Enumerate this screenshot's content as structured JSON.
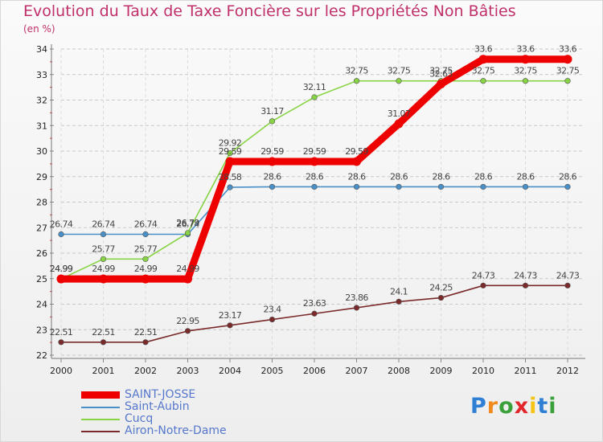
{
  "title": "Evolution du Taux de Taxe Foncière sur les Propriétés Non Bâties",
  "unit_label": "(en %)",
  "logo": {
    "text": "Proxiti",
    "colors": [
      "#2f7fd4",
      "#f08a1c",
      "#3aa13a",
      "#e2262b",
      "#f5c414",
      "#2f7fd4",
      "#3aa13a"
    ]
  },
  "chart_data": {
    "type": "line",
    "title": "Evolution du Taux de Taxe Foncière sur les Propriétés Non Bâties",
    "ylabel": "(en %)",
    "xlabel": "",
    "ylim": [
      22,
      34
    ],
    "yticks": [
      22,
      23,
      24,
      25,
      26,
      27,
      28,
      29,
      30,
      31,
      32,
      33,
      34
    ],
    "categories": [
      "2000",
      "2001",
      "2002",
      "2003",
      "2004",
      "2005",
      "2006",
      "2007",
      "2008",
      "2009",
      "2010",
      "2011",
      "2012"
    ],
    "grid": "horizontal dashed",
    "legend_position": "bottom-left",
    "series": [
      {
        "name": "SAINT-JOSSE",
        "color": "#ee0000",
        "values": [
          24.99,
          24.99,
          24.99,
          24.99,
          29.59,
          29.59,
          29.59,
          29.59,
          31.07,
          32.63,
          33.6,
          33.6,
          33.6
        ],
        "labels": [
          "24.99",
          "24.99",
          "24.99",
          "24.99",
          "29.59",
          "29.59",
          "29.59",
          "29.59",
          "31.07",
          "32.63",
          "33.6",
          "33.6",
          "33.6"
        ]
      },
      {
        "name": "Saint-Aubin",
        "color": "#4a90c8",
        "values": [
          26.74,
          26.74,
          26.74,
          26.74,
          28.58,
          28.6,
          28.6,
          28.6,
          28.6,
          28.6,
          28.6,
          28.6,
          28.6
        ],
        "labels": [
          "26.74",
          "26.74",
          "26.74",
          "26.74",
          "28.58",
          "28.6",
          "28.6",
          "28.6",
          "28.6",
          "28.6",
          "28.6",
          "28.6",
          "28.6"
        ]
      },
      {
        "name": "Cucq",
        "color": "#88d444",
        "values": [
          24.99,
          25.77,
          25.77,
          26.79,
          29.92,
          31.17,
          32.11,
          32.75,
          32.75,
          32.75,
          32.75,
          32.75,
          32.75
        ],
        "labels": [
          "24.99",
          "25.77",
          "25.77",
          "26.79",
          "29.92",
          "31.17",
          "32.11",
          "32.75",
          "32.75",
          "32.75",
          "32.75",
          "32.75",
          "32.75"
        ]
      },
      {
        "name": "Airon-Notre-Dame",
        "color": "#7a2a2a",
        "values": [
          22.51,
          22.51,
          22.51,
          22.95,
          23.17,
          23.4,
          23.63,
          23.86,
          24.1,
          24.25,
          24.73,
          24.73,
          24.73
        ],
        "labels": [
          "22.51",
          "22.51",
          "22.51",
          "22.95",
          "23.17",
          "23.4",
          "23.63",
          "23.86",
          "24.1",
          "24.25",
          "24.73",
          "24.73",
          "24.73"
        ]
      }
    ]
  }
}
